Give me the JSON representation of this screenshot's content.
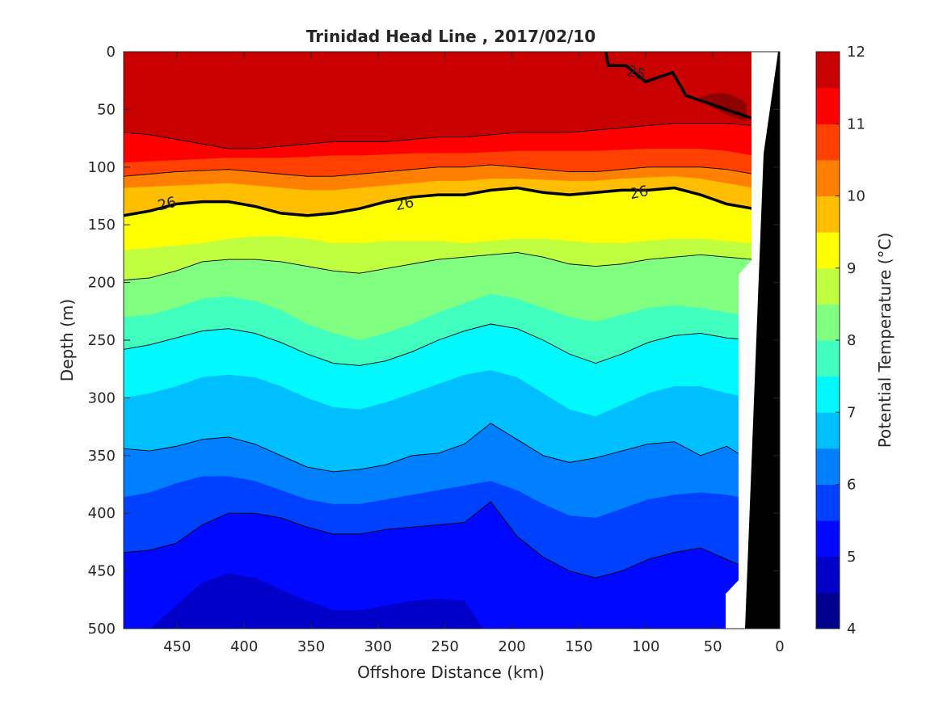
{
  "chart_data": {
    "type": "heatmap",
    "title": "Trinidad Head Line , 2017/02/10",
    "xlabel": "Offshore Distance (km)",
    "ylabel": "Depth (m)",
    "colorbar_label": "Potential Temperature (°C)",
    "x_reversed": true,
    "y_reversed": true,
    "xlim": [
      0,
      490
    ],
    "ylim": [
      0,
      500
    ],
    "xticks": [
      450,
      400,
      350,
      300,
      250,
      200,
      150,
      100,
      50,
      0
    ],
    "yticks": [
      0,
      50,
      100,
      150,
      200,
      250,
      300,
      350,
      400,
      450,
      500
    ],
    "colorbar_ticks": [
      4,
      5,
      6,
      7,
      8,
      9,
      10,
      11,
      12
    ],
    "colorbar_range": [
      4,
      12
    ],
    "contour_interval": 0.5,
    "colormap": [
      "#00008f",
      "#0000c8",
      "#0008ff",
      "#0040ff",
      "#0080ff",
      "#00bfff",
      "#00f8ff",
      "#40ffbf",
      "#80ff80",
      "#bfff40",
      "#ffff00",
      "#ffbf00",
      "#ff8000",
      "#ff4000",
      "#ff0000",
      "#c80000",
      "#8f0000"
    ],
    "isotherms": [
      {
        "temp": 11.0,
        "depth": [
          70,
          72,
          76,
          80,
          84,
          84,
          82,
          80,
          78,
          78,
          78,
          76,
          74,
          74,
          72,
          70,
          70,
          70,
          68,
          66,
          64,
          62,
          62,
          62,
          64
        ]
      },
      {
        "temp": 10.5,
        "depth": [
          96,
          95,
          94,
          93,
          92,
          92,
          92,
          91,
          90,
          90,
          89,
          88,
          88,
          88,
          87,
          86,
          86,
          86,
          86,
          85,
          84,
          84,
          84,
          86,
          90
        ]
      },
      {
        "temp": 10.0,
        "depth": [
          108,
          106,
          104,
          103,
          102,
          104,
          106,
          108,
          108,
          106,
          104,
          102,
          100,
          100,
          98,
          100,
          102,
          104,
          104,
          102,
          100,
          100,
          100,
          102,
          106
        ]
      },
      {
        "temp": 9.5,
        "depth": [
          118,
          117,
          116,
          115,
          114,
          116,
          118,
          120,
          120,
          118,
          116,
          114,
          112,
          112,
          110,
          110,
          111,
          112,
          112,
          110,
          109,
          108,
          110,
          114,
          118
        ]
      },
      {
        "temp": 9.0,
        "depth": [
          142,
          138,
          132,
          130,
          130,
          134,
          140,
          142,
          140,
          136,
          130,
          126,
          124,
          124,
          120,
          118,
          122,
          124,
          122,
          120,
          120,
          118,
          124,
          132,
          136
        ]
      },
      {
        "temp": 8.5,
        "depth": [
          172,
          170,
          168,
          166,
          162,
          160,
          160,
          162,
          166,
          166,
          164,
          164,
          164,
          166,
          164,
          162,
          162,
          164,
          166,
          166,
          164,
          162,
          162,
          164,
          166
        ]
      },
      {
        "temp": 8.0,
        "depth": [
          198,
          196,
          190,
          182,
          180,
          180,
          182,
          186,
          190,
          192,
          188,
          184,
          180,
          178,
          176,
          174,
          178,
          184,
          186,
          184,
          180,
          178,
          176,
          178,
          180
        ]
      },
      {
        "temp": 7.5,
        "depth": [
          230,
          228,
          222,
          214,
          212,
          216,
          224,
          236,
          244,
          250,
          244,
          236,
          226,
          218,
          210,
          214,
          222,
          230,
          234,
          228,
          222,
          220,
          222,
          226,
          230
        ]
      },
      {
        "temp": 7.0,
        "depth": [
          258,
          254,
          248,
          242,
          240,
          244,
          252,
          262,
          270,
          272,
          268,
          260,
          250,
          242,
          236,
          240,
          250,
          262,
          270,
          262,
          252,
          246,
          244,
          248,
          250
        ]
      },
      {
        "temp": 6.5,
        "depth": [
          300,
          296,
          290,
          282,
          280,
          282,
          290,
          300,
          308,
          310,
          304,
          296,
          288,
          280,
          276,
          282,
          296,
          310,
          316,
          306,
          296,
          290,
          290,
          296,
          300
        ]
      },
      {
        "temp": 6.0,
        "depth": [
          344,
          346,
          342,
          336,
          334,
          340,
          350,
          360,
          364,
          362,
          358,
          350,
          348,
          340,
          322,
          336,
          350,
          356,
          352,
          346,
          340,
          338,
          350,
          342,
          356
        ]
      },
      {
        "temp": 5.5,
        "depth": [
          386,
          382,
          374,
          368,
          368,
          372,
          380,
          388,
          392,
          392,
          388,
          384,
          380,
          376,
          372,
          380,
          392,
          402,
          404,
          396,
          388,
          384,
          382,
          384,
          388
        ]
      },
      {
        "temp": 5.0,
        "depth": [
          434,
          432,
          426,
          410,
          400,
          400,
          404,
          412,
          418,
          418,
          414,
          412,
          410,
          408,
          390,
          420,
          438,
          450,
          456,
          450,
          440,
          434,
          430,
          440,
          450
        ]
      },
      {
        "temp": 4.5,
        "depth": [
          510,
          500,
          480,
          460,
          452,
          456,
          466,
          476,
          484,
          484,
          480,
          476,
          474,
          476,
          510,
          510,
          510,
          510,
          510,
          510,
          510,
          510,
          510,
          510,
          510
        ]
      }
    ],
    "labeled_contours": [
      {
        "label": "26"
      },
      {
        "label": "26"
      },
      {
        "label": "26"
      },
      {
        "label": "25"
      }
    ]
  }
}
